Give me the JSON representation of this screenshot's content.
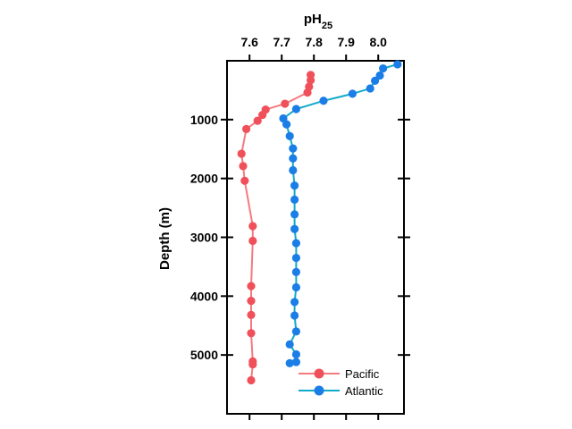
{
  "chart_data": {
    "type": "line",
    "title": "",
    "xlabel": "pH",
    "xlabel_sub": "25",
    "ylabel": "Depth (m)",
    "xlim": [
      7.53,
      8.08
    ],
    "ylim": [
      6000,
      0
    ],
    "y_inverted": true,
    "x_axis_position": "top",
    "x_ticks": [
      7.6,
      7.7,
      7.8,
      7.9,
      8.0
    ],
    "x_tick_labels": [
      "7.6",
      "7.7",
      "7.8",
      "7.9",
      "8.0"
    ],
    "y_ticks": [
      1000,
      2000,
      3000,
      4000,
      5000
    ],
    "y_tick_labels": [
      "1000",
      "2000",
      "3000",
      "4000",
      "5000"
    ],
    "grid": false,
    "legend_position": "bottom-right",
    "series": [
      {
        "name": "Pacific",
        "color": "#f0505a",
        "line_color": "#f47a80",
        "points": [
          {
            "x": 7.79,
            "y": 240
          },
          {
            "x": 7.79,
            "y": 330
          },
          {
            "x": 7.785,
            "y": 440
          },
          {
            "x": 7.78,
            "y": 540
          },
          {
            "x": 7.71,
            "y": 730
          },
          {
            "x": 7.65,
            "y": 830
          },
          {
            "x": 7.64,
            "y": 920
          },
          {
            "x": 7.625,
            "y": 1020
          },
          {
            "x": 7.59,
            "y": 1160
          },
          {
            "x": 7.575,
            "y": 1580
          },
          {
            "x": 7.58,
            "y": 1790
          },
          {
            "x": 7.585,
            "y": 2040
          },
          {
            "x": 7.61,
            "y": 2810
          },
          {
            "x": 7.61,
            "y": 3060
          },
          {
            "x": 7.605,
            "y": 3830
          },
          {
            "x": 7.605,
            "y": 4080
          },
          {
            "x": 7.605,
            "y": 4320
          },
          {
            "x": 7.605,
            "y": 4630
          },
          {
            "x": 7.61,
            "y": 5110
          },
          {
            "x": 7.61,
            "y": 5160
          },
          {
            "x": 7.605,
            "y": 5430
          }
        ]
      },
      {
        "name": "Atlantic",
        "color": "#1a7ee6",
        "line_color": "#11aac8",
        "points": [
          {
            "x": 8.06,
            "y": 60
          },
          {
            "x": 8.015,
            "y": 130
          },
          {
            "x": 8.005,
            "y": 250
          },
          {
            "x": 7.99,
            "y": 340
          },
          {
            "x": 7.975,
            "y": 470
          },
          {
            "x": 7.92,
            "y": 560
          },
          {
            "x": 7.83,
            "y": 680
          },
          {
            "x": 7.745,
            "y": 820
          },
          {
            "x": 7.705,
            "y": 980
          },
          {
            "x": 7.715,
            "y": 1080
          },
          {
            "x": 7.725,
            "y": 1280
          },
          {
            "x": 7.735,
            "y": 1490
          },
          {
            "x": 7.735,
            "y": 1660
          },
          {
            "x": 7.735,
            "y": 1860
          },
          {
            "x": 7.74,
            "y": 2120
          },
          {
            "x": 7.74,
            "y": 2360
          },
          {
            "x": 7.74,
            "y": 2610
          },
          {
            "x": 7.74,
            "y": 2860
          },
          {
            "x": 7.745,
            "y": 3100
          },
          {
            "x": 7.745,
            "y": 3350
          },
          {
            "x": 7.745,
            "y": 3590
          },
          {
            "x": 7.745,
            "y": 3850
          },
          {
            "x": 7.74,
            "y": 4100
          },
          {
            "x": 7.74,
            "y": 4330
          },
          {
            "x": 7.745,
            "y": 4600
          },
          {
            "x": 7.725,
            "y": 4820
          },
          {
            "x": 7.745,
            "y": 4990
          },
          {
            "x": 7.745,
            "y": 5120
          },
          {
            "x": 7.725,
            "y": 5140
          }
        ]
      }
    ]
  }
}
